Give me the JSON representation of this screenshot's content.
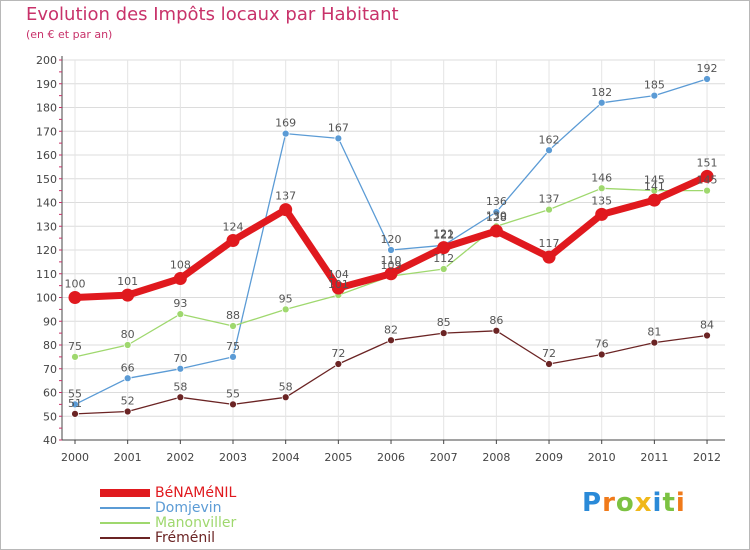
{
  "chart_data": {
    "type": "line",
    "title": "Evolution des Impôts locaux par Habitant",
    "subtitle": "(en € et par an)",
    "xlabel": "",
    "ylabel": "",
    "ylim": [
      40,
      200
    ],
    "yticks": [
      40,
      50,
      60,
      70,
      80,
      90,
      100,
      110,
      120,
      130,
      140,
      150,
      160,
      170,
      180,
      190,
      200
    ],
    "categories": [
      "2000",
      "2001",
      "2002",
      "2003",
      "2004",
      "2005",
      "2006",
      "2007",
      "2008",
      "2009",
      "2010",
      "2011",
      "2012"
    ],
    "series": [
      {
        "name": "BéNAMéNIL",
        "color": "#e0191e",
        "values": [
          100,
          101,
          108,
          124,
          137,
          104,
          110,
          121,
          128,
          117,
          135,
          141,
          151
        ]
      },
      {
        "name": "Domjevin",
        "color": "#5b9bd5",
        "values": [
          55,
          66,
          70,
          75,
          169,
          167,
          120,
          122,
          136,
          162,
          182,
          185,
          192
        ]
      },
      {
        "name": "Manonviller",
        "color": "#9fd86e",
        "values": [
          75,
          80,
          93,
          88,
          95,
          101,
          109,
          112,
          130,
          137,
          146,
          145,
          145
        ]
      },
      {
        "name": "Fréménil",
        "color": "#6b2424",
        "values": [
          51,
          52,
          58,
          55,
          58,
          72,
          82,
          85,
          86,
          72,
          76,
          81,
          84
        ]
      }
    ],
    "grid": true,
    "legend": "bottom-left"
  },
  "logo": {
    "letters": [
      "P",
      "r",
      "o",
      "x",
      "i",
      "t",
      "i"
    ],
    "colors": [
      "#2a8ad8",
      "#f07a1a",
      "#7cc242",
      "#f0b81a",
      "#2a8ad8",
      "#7cc242",
      "#f07a1a"
    ]
  },
  "colors": {
    "title": "#c8326a",
    "grid": "#dddddd",
    "axis": "#444444"
  }
}
